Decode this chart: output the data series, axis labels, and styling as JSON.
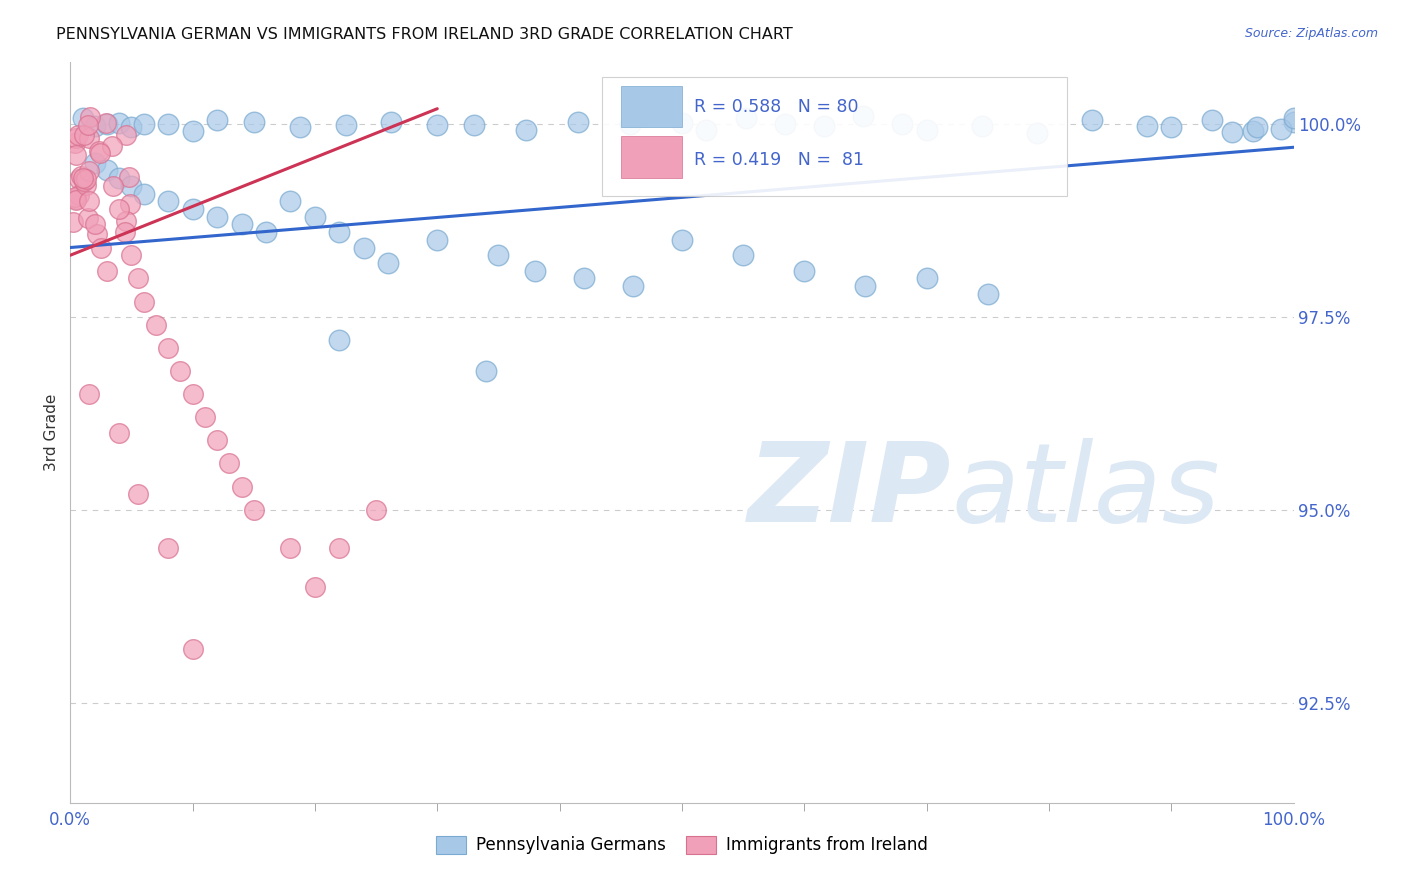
{
  "title": "PENNSYLVANIA GERMAN VS IMMIGRANTS FROM IRELAND 3RD GRADE CORRELATION CHART",
  "source": "Source: ZipAtlas.com",
  "ylabel": "3rd Grade",
  "yaxis_values": [
    92.5,
    95.0,
    97.5,
    100.0
  ],
  "xmin": 0.0,
  "xmax": 100.0,
  "ymin": 91.2,
  "ymax": 100.8,
  "legend_blue_label": "Pennsylvania Germans",
  "legend_pink_label": "Immigrants from Ireland",
  "R_blue": 0.588,
  "N_blue": 80,
  "R_pink": 0.419,
  "N_pink": 81,
  "blue_color": "#a8c8e8",
  "pink_color": "#f0a0b8",
  "blue_edge_color": "#7aaad0",
  "pink_edge_color": "#d87090",
  "blue_line_color": "#3366cc",
  "pink_line_color": "#cc3355",
  "watermark_zip_color": "#dde8f5",
  "watermark_atlas_color": "#dde8f5"
}
